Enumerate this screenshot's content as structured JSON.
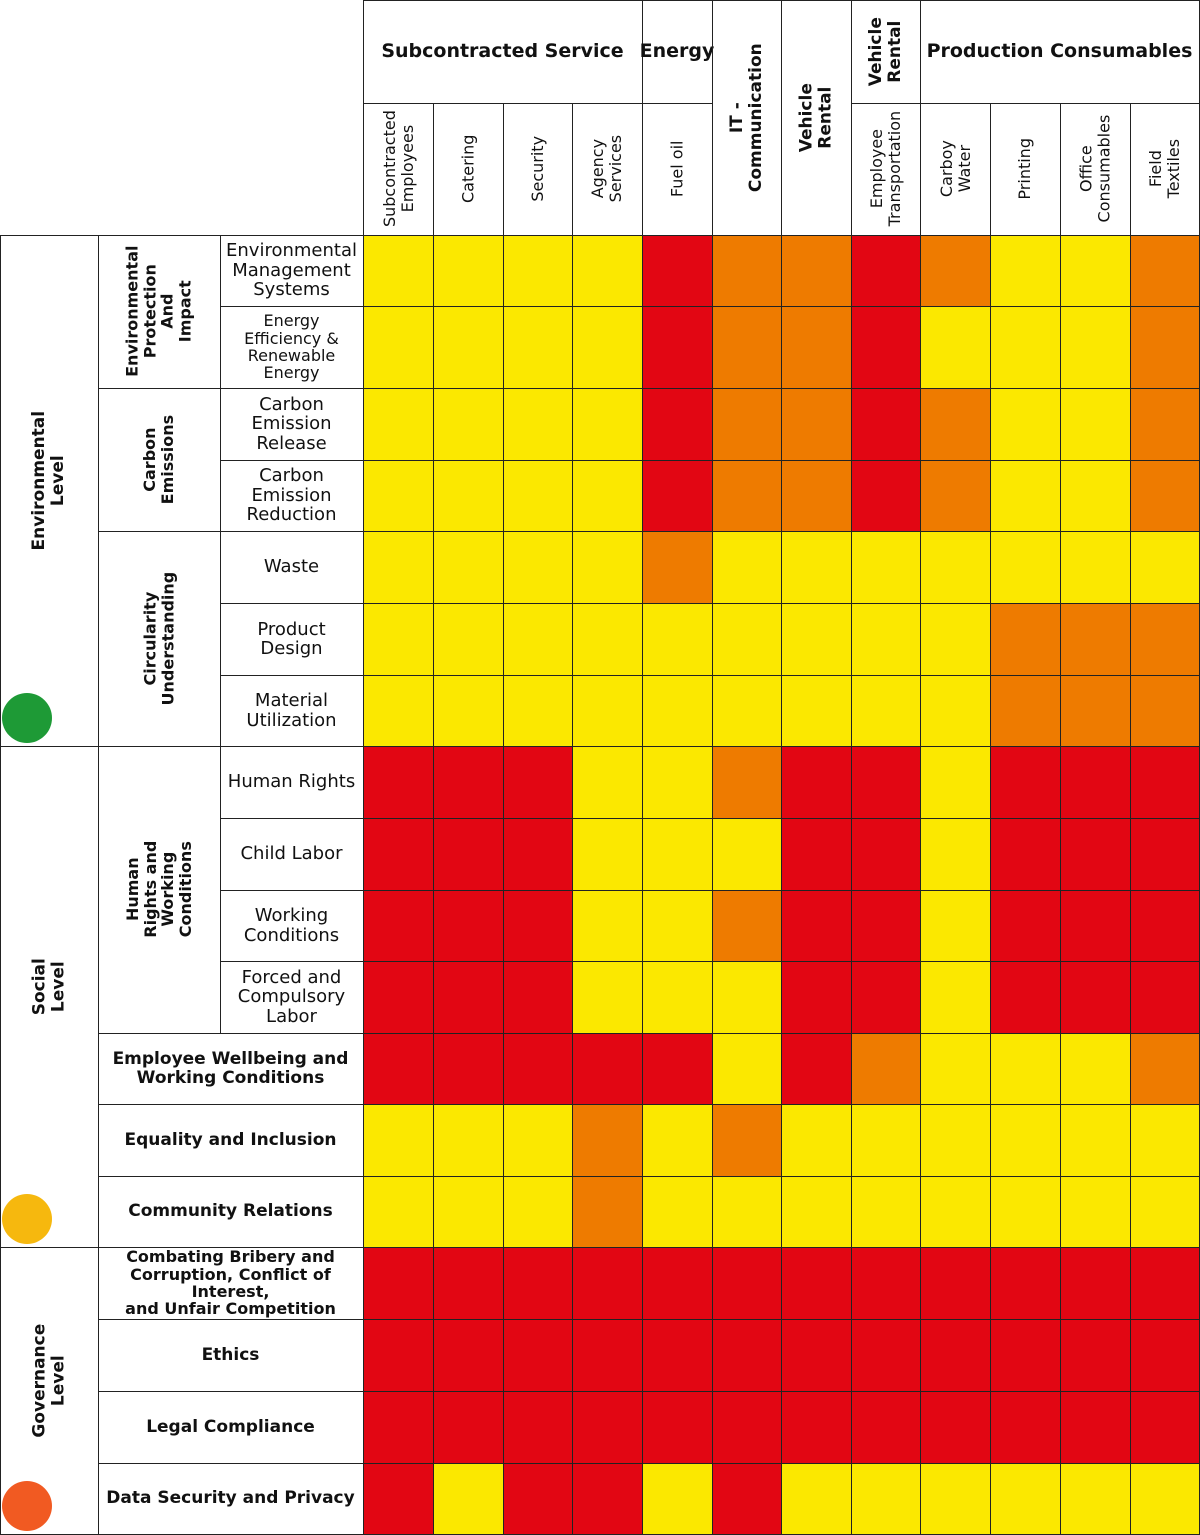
{
  "chart_data": {
    "type": "heatmap",
    "colors": {
      "yellow": "#FBE800",
      "orange": "#EE7B00",
      "red": "#E20613"
    },
    "column_groups": [
      {
        "label": "Subcontracted Service",
        "start": 0,
        "span": 4,
        "vertical": false
      },
      {
        "label": "Energy",
        "start": 4,
        "span": 1,
        "vertical": false
      },
      {
        "label": "IT - Communication",
        "start": 5,
        "span": 1,
        "vertical": true,
        "full": true
      },
      {
        "label": "Vehicle Rental",
        "start": 6,
        "span": 1,
        "vertical": true,
        "full": true
      },
      {
        "label": "Vehicle\nRental",
        "start": 7,
        "span": 1,
        "vertical": true,
        "full": false
      },
      {
        "label": "Production Consumables",
        "start": 8,
        "span": 4,
        "vertical": false
      }
    ],
    "columns": [
      "Subcontracted\nEmployees",
      "Catering",
      "Security",
      "Agency\nServices",
      "Fuel oil",
      "",
      "",
      "Employee\nTransportation",
      "Carboy\nWater",
      "Printing",
      "Office\nConsumables",
      "Field Textiles"
    ],
    "levels": [
      {
        "label": "Environmental Level",
        "start": 0,
        "end": 7,
        "dot_color": "#1E9A36"
      },
      {
        "label": "Social Level",
        "start": 7,
        "end": 14,
        "dot_color": "#F6B80E"
      },
      {
        "label": "Governance Level",
        "start": 14,
        "end": 18,
        "dot_color": "#F15A22"
      }
    ],
    "categories": [
      {
        "label": "Environmental\nProtection And\nImpact",
        "start": 0,
        "end": 2
      },
      {
        "label": "Carbon\nEmissions",
        "start": 2,
        "end": 4
      },
      {
        "label": "Circularity\nUnderstanding",
        "start": 4,
        "end": 7
      },
      {
        "label": "Human Rights and\nWorking Conditions",
        "start": 7,
        "end": 11
      }
    ],
    "rows": [
      {
        "label": "Environmental\nManagement\nSystems",
        "bold": false,
        "cells": "YYYYROOROYYO"
      },
      {
        "label": "Energy\nEfficiency &\nRenewable\nEnergy",
        "bold": false,
        "cells": "YYYYROORYYYO"
      },
      {
        "label": "Carbon\nEmission\nRelease",
        "bold": false,
        "cells": "YYYYROOROYYO"
      },
      {
        "label": "Carbon\nEmission\nReduction",
        "bold": false,
        "cells": "YYYYROOROYYO"
      },
      {
        "label": "Waste",
        "bold": false,
        "cells": "YYYYOYYYYYYY"
      },
      {
        "label": "Product\nDesign",
        "bold": false,
        "cells": "YYYYYYYYYOOO"
      },
      {
        "label": "Material\nUtilization",
        "bold": false,
        "cells": "YYYYYYYYYOOO"
      },
      {
        "label": "Human Rights",
        "bold": false,
        "cells": "RRRYYORRYRRR"
      },
      {
        "label": "Child Labor",
        "bold": false,
        "cells": "RRRYYYRRYRRR"
      },
      {
        "label": "Working\nConditions",
        "bold": false,
        "cells": "RRRYYORRYRRR"
      },
      {
        "label": "Forced and\nCompulsory\nLabor",
        "bold": false,
        "cells": "RRRYYYRRYRRR"
      },
      {
        "label": "Employee Wellbeing and\nWorking Conditions",
        "bold": true,
        "cells": "RRRRRYROYYYO"
      },
      {
        "label": "Equality and Inclusion",
        "bold": true,
        "cells": "YYYOYOYYYYYY"
      },
      {
        "label": "Community Relations",
        "bold": true,
        "cells": "YYYOYYYYYYYY"
      },
      {
        "label": "Combating Bribery and\nCorruption, Conflict of Interest,\nand Unfair Competition",
        "bold": true,
        "cells": "RRRRRRRRRRRR"
      },
      {
        "label": "Ethics",
        "bold": true,
        "cells": "RRRRRRRRRRRR"
      },
      {
        "label": "Legal Compliance",
        "bold": true,
        "cells": "RRRRRRRRRRRR"
      },
      {
        "label": "Data Security and Privacy",
        "bold": true,
        "cells": "RYRRYRYYYYYY"
      }
    ]
  }
}
